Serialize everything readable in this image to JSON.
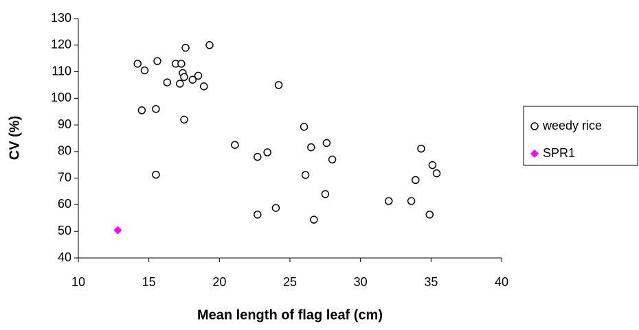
{
  "chart_data": {
    "type": "scatter",
    "x_label": "Mean length of flag leaf (cm)",
    "y_label": "CV (%)",
    "xlim": [
      10,
      40
    ],
    "xticks": [
      10,
      15,
      20,
      25,
      30,
      35,
      40
    ],
    "ylim": [
      40,
      130
    ],
    "yticks": [
      40,
      50,
      60,
      70,
      80,
      90,
      100,
      110,
      120,
      130
    ],
    "legend": "right",
    "series": [
      {
        "name": "weedy rice",
        "color": "#000000",
        "marker": "open-circle",
        "x": [
          14.2,
          14.7,
          15.6,
          17.6,
          19.3,
          14.5,
          15.5,
          15.5,
          16.3,
          16.9,
          17.3,
          17.4,
          17.5,
          17.2,
          18.1,
          18.5,
          18.9,
          17.5,
          21.1,
          22.7,
          23.4,
          24.2,
          22.7,
          24.0,
          26.0,
          26.5,
          27.6,
          28.0,
          26.1,
          27.5,
          26.7,
          32.0,
          33.6,
          33.9,
          34.3,
          35.1,
          35.4,
          34.9
        ],
        "values": [
          113,
          110.5,
          114,
          119,
          120,
          95.5,
          96,
          71.3,
          106,
          113,
          113,
          109.5,
          108,
          105.5,
          107,
          108.5,
          104.5,
          92,
          82.5,
          78,
          79.7,
          105,
          56.3,
          58.8,
          89.3,
          81.6,
          83.2,
          77,
          71.2,
          64,
          54.4,
          61.4,
          61.4,
          69.3,
          81.1,
          74.9,
          71.8,
          56.3
        ]
      },
      {
        "name": "SPR1",
        "color": "#ff00ff",
        "marker": "diamond",
        "x": [
          12.8
        ],
        "values": [
          50.4
        ]
      }
    ]
  }
}
